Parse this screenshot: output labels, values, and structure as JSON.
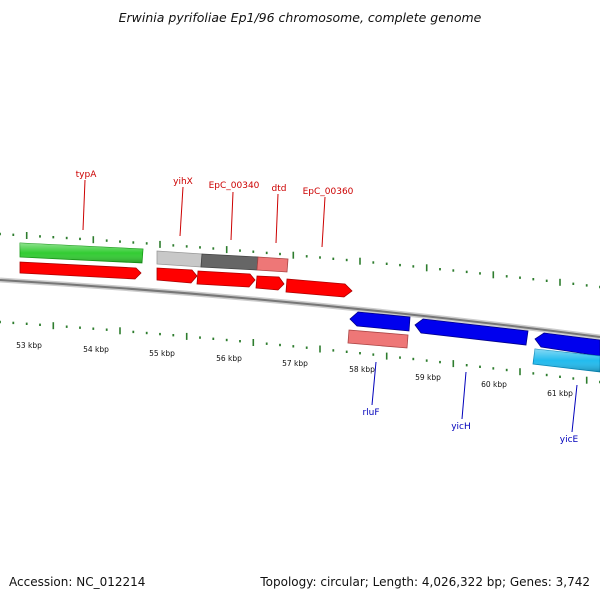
{
  "title": "Erwinia pyrifoliae Ep1/96 chromosome, complete genome",
  "footer": {
    "accession": "Accession: NC_012214",
    "summary": "Topology: circular; Length: 4,026,322 bp; Genes: 3,742"
  },
  "colors": {
    "backbone": "#888888",
    "tick": "#2e7d2e",
    "top_label": "#cc0000",
    "bottom_label": "#0000bb",
    "cds_red": "#ff0000",
    "cds_blue": "#0000ee",
    "gene_green": "#33cc33",
    "gene_pink": "#ee7777",
    "gene_light_gray": "#c8c8c8",
    "gene_dark_gray": "#666666",
    "gene_cyan": "#22bbee"
  },
  "scale": {
    "unit": "kbp",
    "ticks": [
      "53 kbp",
      "54 kbp",
      "55 kbp",
      "56 kbp",
      "57 kbp",
      "58 kbp",
      "59 kbp",
      "60 kbp",
      "61 kbp"
    ]
  },
  "top_labels": [
    "typA",
    "yihX",
    "EpC_00340",
    "dtd",
    "EpC_00360"
  ],
  "bottom_labels": [
    "rluF",
    "yicH",
    "yicE"
  ]
}
